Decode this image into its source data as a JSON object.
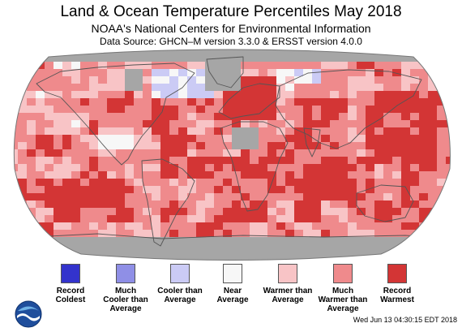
{
  "title": "Land & Ocean Temperature Percentiles May 2018",
  "subtitle": "NOAA's National Centers for Environmental Information",
  "source": "Data Source: GHCN–M version 3.3.0 & ERSST version 4.0.0",
  "legend": [
    {
      "label1": "Record",
      "label2": "Coldest",
      "label3": "",
      "color": "#3333cc"
    },
    {
      "label1": "Much",
      "label2": "Cooler than",
      "label3": "Average",
      "color": "#8f8fe6"
    },
    {
      "label1": "Cooler than",
      "label2": "Average",
      "label3": "",
      "color": "#cbcbf5"
    },
    {
      "label1": "Near",
      "label2": "Average",
      "label3": "",
      "color": "#f7f7f7"
    },
    {
      "label1": "Warmer than",
      "label2": "Average",
      "label3": "",
      "color": "#f8c4c6"
    },
    {
      "label1": "Much",
      "label2": "Warmer than",
      "label3": "Average",
      "color": "#ef8a8c"
    },
    {
      "label1": "Record",
      "label2": "Warmest",
      "label3": "",
      "color": "#d33535"
    }
  ],
  "colors": {
    "missing": "#a6a6a6",
    "land_outline": "#555555"
  },
  "timestamp": "Wed Jun 13 04:30:15 EDT 2018"
}
